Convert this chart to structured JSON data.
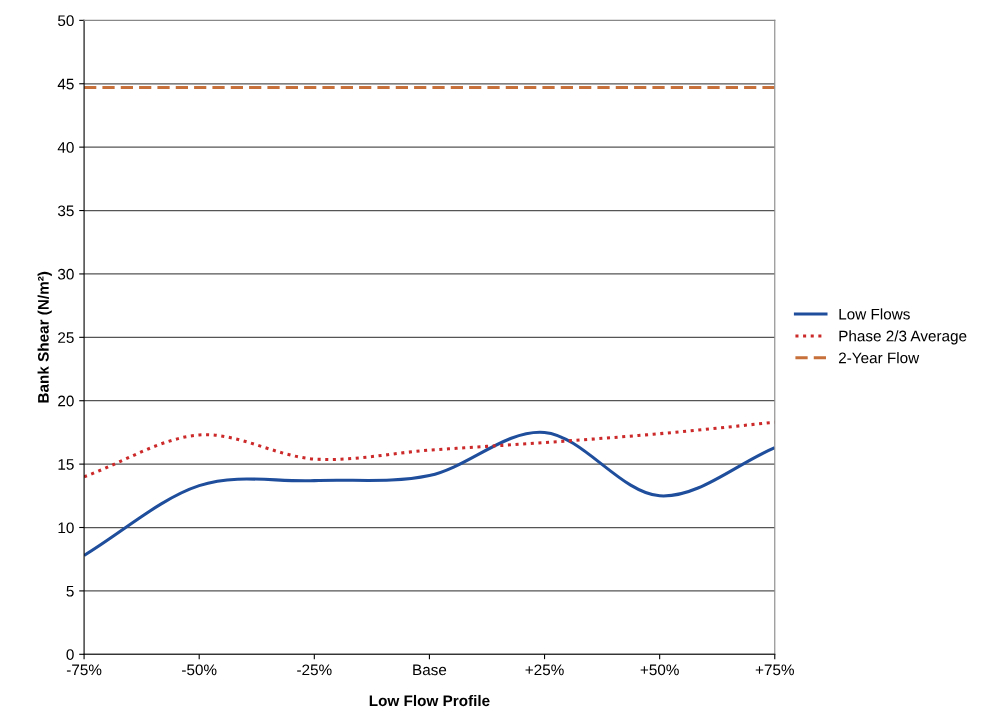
{
  "chart_data": {
    "type": "line",
    "xlabel": "Low Flow Profile",
    "ylabel": "Bank Shear (N/m²)",
    "categories": [
      "-75%",
      "-50%",
      "-25%",
      "Base",
      "+25%",
      "+50%",
      "+75%"
    ],
    "ylim": [
      0,
      50
    ],
    "yticks": [
      0,
      5,
      10,
      15,
      20,
      25,
      30,
      35,
      40,
      45,
      50
    ],
    "grid": "y",
    "legend": "right",
    "marker": "none",
    "series": [
      {
        "name": "Low Flows",
        "color": "#1f4e9c",
        "line_style": "solid",
        "values": [
          7.8,
          13.3,
          13.7,
          14.1,
          17.5,
          12.5,
          16.3
        ]
      },
      {
        "name": "Phase 2/3 Average",
        "color": "#cc2a2a",
        "line_style": "dotted",
        "values": [
          14.0,
          17.3,
          15.4,
          16.1,
          16.7,
          17.4,
          18.3
        ]
      },
      {
        "name": "2-Year Flow",
        "color": "#c8703a",
        "line_style": "dashed",
        "values": [
          44.7,
          44.7,
          44.7,
          44.7,
          44.7,
          44.7,
          44.7
        ]
      }
    ]
  }
}
